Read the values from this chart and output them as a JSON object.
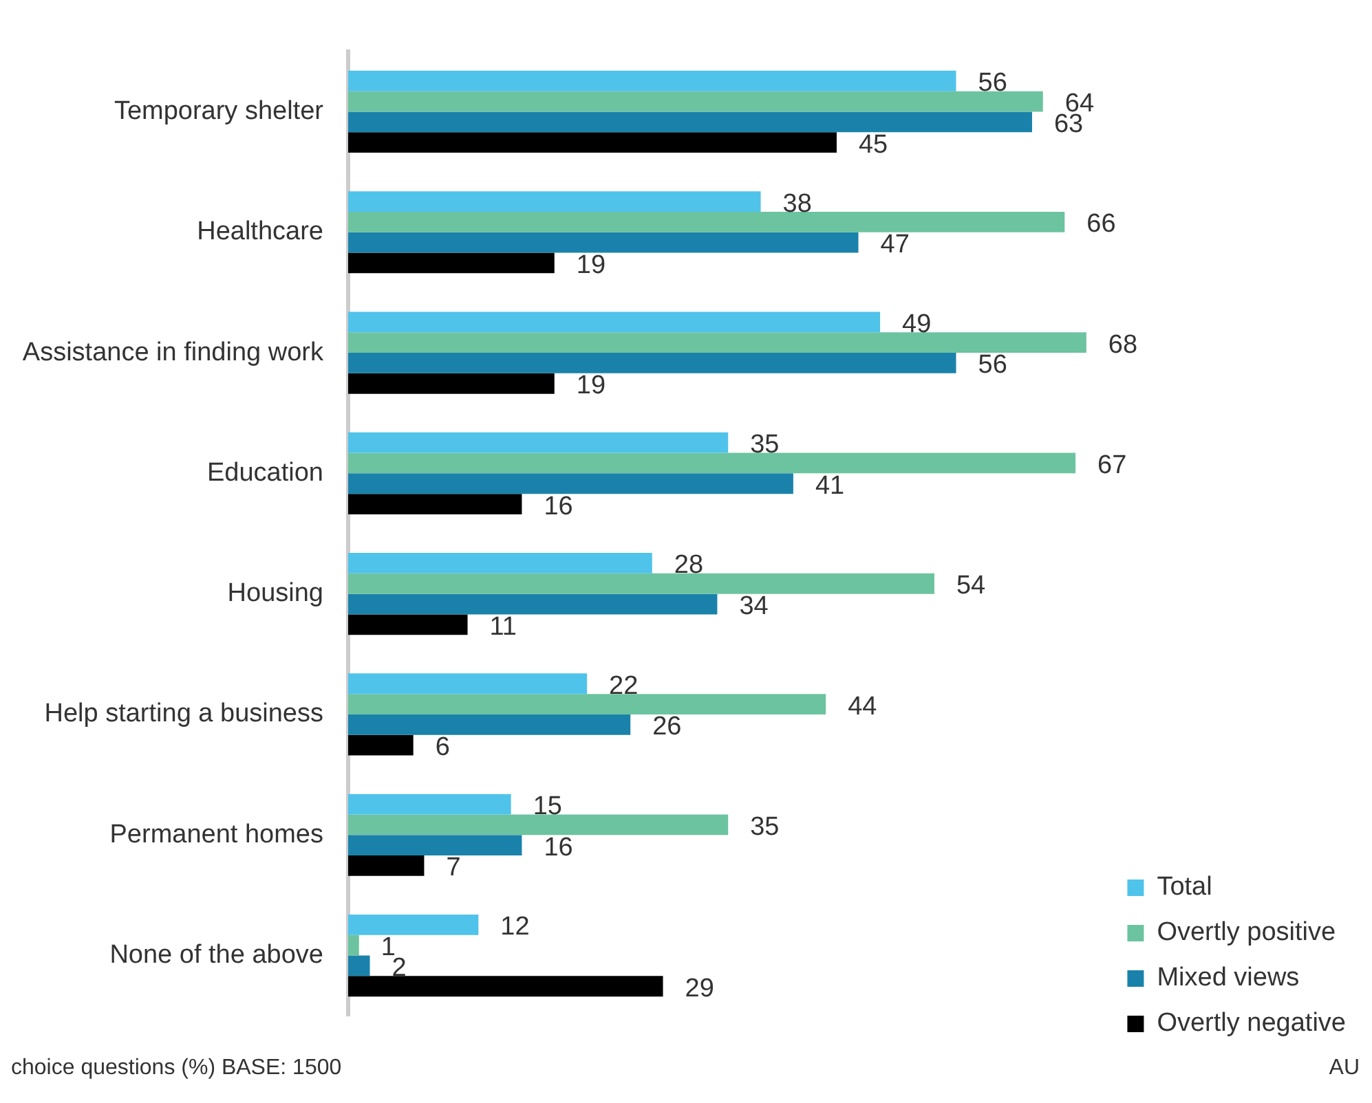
{
  "chart_data": {
    "type": "bar",
    "orientation": "horizontal",
    "categories": [
      "Temporary shelter",
      "Healthcare",
      "Assistance in finding work",
      "Education",
      "Housing",
      "Help starting a business",
      "Permanent homes",
      "None of the above"
    ],
    "series": [
      {
        "name": "Total",
        "color": "#4fc3ea",
        "values": [
          56,
          38,
          49,
          35,
          28,
          22,
          15,
          12
        ]
      },
      {
        "name": "Overtly positive",
        "color": "#6cc3a0",
        "values": [
          64,
          66,
          68,
          67,
          54,
          44,
          35,
          1
        ]
      },
      {
        "name": "Mixed views",
        "color": "#1a82aa",
        "values": [
          63,
          47,
          56,
          41,
          34,
          26,
          16,
          2
        ]
      },
      {
        "name": "Overtly negative",
        "color": "#000000",
        "values": [
          45,
          19,
          19,
          16,
          11,
          6,
          7,
          29
        ]
      }
    ],
    "data_labels": true,
    "legend": "bottom right",
    "annotations": [
      "choice questions (%) BASE: 1500",
      "AU"
    ]
  }
}
